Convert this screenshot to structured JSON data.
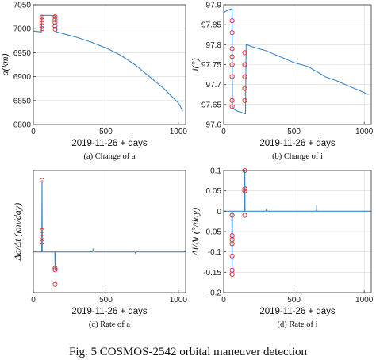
{
  "figure_caption": "Fig. 5 COSMOS-2542 orbital maneuver detection",
  "colors": {
    "line": "#3a86c8",
    "marker": "#e23a3a",
    "grid": "#d8d8d8"
  },
  "chart_data": [
    {
      "id": "a",
      "type": "line",
      "ylabel": "a(km)",
      "xlabel": "2019-11-26 + days",
      "caption": "(a) Change of a",
      "xlim": [
        0,
        1050
      ],
      "ylim": [
        6800,
        7050
      ],
      "xticks": [
        0,
        500,
        1000
      ],
      "yticks": [
        6800,
        6850,
        6900,
        6950,
        7000,
        7050
      ],
      "grid": true,
      "series": [
        {
          "x": [
            0,
            30,
            55,
            60,
            65,
            80,
            100,
            120,
            150,
            160,
            165,
            200,
            300,
            400,
            500,
            600,
            700,
            800,
            900,
            950,
            1000,
            1030
          ],
          "y": [
            6995,
            6994,
            6993,
            7028,
            7028,
            7028,
            7028,
            7028,
            7027,
            6993,
            6993,
            6990,
            6982,
            6972,
            6960,
            6945,
            6925,
            6900,
            6875,
            6860,
            6845,
            6828
          ]
        }
      ],
      "markers": {
        "x": [
          60,
          60,
          60,
          60,
          60,
          150,
          150,
          150,
          150,
          150
        ],
        "y": [
          7000,
          7006,
          7012,
          7018,
          7024,
          7025,
          7019,
          7013,
          7006,
          6999
        ]
      }
    },
    {
      "id": "b",
      "type": "line",
      "ylabel": "i(°)",
      "xlabel": "2019-11-26 + days",
      "caption": "(b) Change of i",
      "xlim": [
        0,
        1050
      ],
      "ylim": [
        97.6,
        97.9
      ],
      "xticks": [
        0,
        500,
        1000
      ],
      "yticks": [
        97.6,
        97.65,
        97.7,
        97.75,
        97.8,
        97.85,
        97.9
      ],
      "grid": true,
      "series": [
        {
          "x": [
            0,
            20,
            40,
            55,
            60,
            62,
            70,
            80,
            100,
            130,
            150,
            155,
            160,
            165,
            200,
            300,
            400,
            500,
            600,
            650,
            700,
            720,
            800,
            900,
            1000,
            1030
          ],
          "y": [
            97.88,
            97.885,
            97.888,
            97.89,
            97.89,
            97.64,
            97.64,
            97.637,
            97.633,
            97.63,
            97.627,
            97.627,
            97.8,
            97.8,
            97.795,
            97.785,
            97.77,
            97.755,
            97.745,
            97.735,
            97.725,
            97.72,
            97.71,
            97.695,
            97.68,
            97.675
          ]
        }
      ],
      "markers": {
        "x": [
          60,
          60,
          60,
          60,
          60,
          60,
          60,
          60,
          150,
          150,
          150,
          150,
          150
        ],
        "y": [
          97.86,
          97.83,
          97.79,
          97.77,
          97.75,
          97.72,
          97.66,
          97.645,
          97.78,
          97.75,
          97.72,
          97.69,
          97.66
        ]
      }
    },
    {
      "id": "c",
      "type": "line",
      "ylabel": "Δa/Δt (km/day)",
      "xlabel": "2019-11-26 + days",
      "caption": "(c) Rate of a",
      "xlim": [
        0,
        1050
      ],
      "ylim": [
        -25,
        50
      ],
      "xticks": [
        0,
        500,
        1000
      ],
      "yticks": [],
      "grid": true,
      "series": [
        {
          "x": [
            0,
            55,
            58,
            60,
            62,
            65,
            140,
            145,
            148,
            150,
            152,
            155,
            400,
            410,
            412,
            420,
            700,
            705,
            710,
            1050
          ],
          "y": [
            0,
            0,
            0,
            44,
            0,
            0,
            0,
            0,
            0,
            -11,
            0,
            0,
            0,
            0,
            1.5,
            0,
            0,
            -1,
            0,
            0
          ]
        }
      ],
      "markers": {
        "x": [
          60,
          60,
          60,
          60,
          150,
          150,
          150
        ],
        "y": [
          44,
          13,
          9,
          6,
          -10,
          -11,
          -20
        ]
      }
    },
    {
      "id": "d",
      "type": "line",
      "ylabel": "Δi/Δt (°/day)",
      "xlabel": "2019-11-26 + days",
      "caption": "(d) Rate of i",
      "xlim": [
        0,
        1050
      ],
      "ylim": [
        -0.2,
        0.1
      ],
      "xticks": [
        0,
        500,
        1000
      ],
      "yticks": [
        -0.2,
        -0.15,
        -0.1,
        -0.05,
        0,
        0.05,
        0.1
      ],
      "grid": true,
      "series": [
        {
          "x": [
            0,
            50,
            55,
            58,
            60,
            62,
            65,
            140,
            145,
            148,
            150,
            152,
            155,
            300,
            305,
            310,
            400,
            660,
            662,
            664,
            700,
            1050
          ],
          "y": [
            0,
            0,
            0,
            0,
            -0.155,
            0,
            0,
            0,
            0,
            0,
            0.1,
            0,
            0,
            0,
            0.005,
            0,
            0,
            0,
            0.015,
            0,
            0,
            0
          ]
        }
      ],
      "markers": {
        "x": [
          60,
          60,
          60,
          60,
          60,
          60,
          60,
          150,
          150,
          150,
          150
        ],
        "y": [
          -0.01,
          -0.06,
          -0.07,
          -0.08,
          -0.11,
          -0.145,
          -0.155,
          0.1,
          0.055,
          0.05,
          -0.01
        ]
      }
    }
  ]
}
